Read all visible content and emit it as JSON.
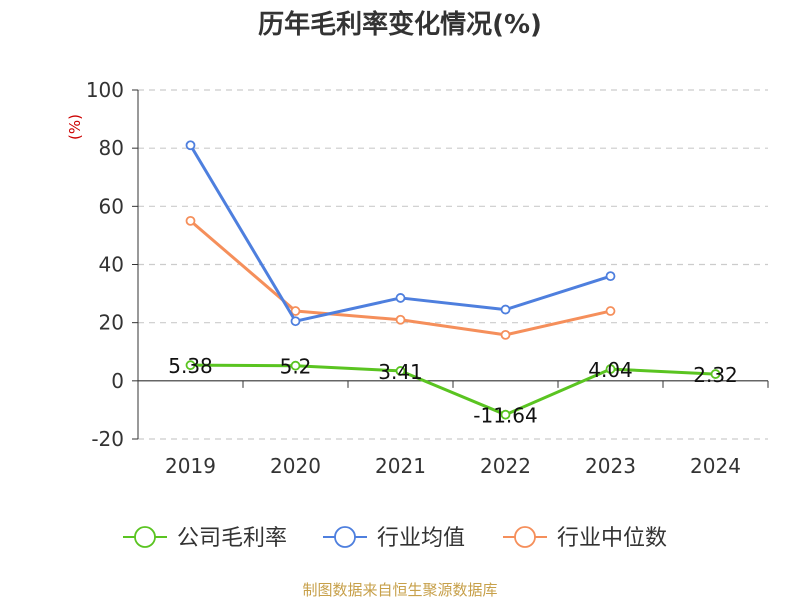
{
  "chart_data": {
    "type": "line",
    "title": "历年毛利率变化情况(%)",
    "ylabel": "(%)",
    "categories": [
      "2019",
      "2020",
      "2021",
      "2022",
      "2023",
      "2024"
    ],
    "ylim": [
      -20,
      100
    ],
    "yticks": [
      -20,
      0,
      20,
      40,
      60,
      80,
      100
    ],
    "grid": true,
    "legend": "bottom",
    "series": [
      {
        "name": "公司毛利率",
        "color": "#5ac421",
        "values": [
          5.38,
          5.2,
          3.41,
          -11.64,
          4.04,
          2.32
        ],
        "labels": [
          "5.38",
          "5.2",
          "3.41",
          "-11.64",
          "4.04",
          "2.32"
        ]
      },
      {
        "name": "行业均值",
        "color": "#4e7fde",
        "values": [
          81,
          20.5,
          28.5,
          24.5,
          36,
          null
        ]
      },
      {
        "name": "行业中位数",
        "color": "#f58f5b",
        "values": [
          55,
          24,
          21,
          15.8,
          24,
          null
        ]
      }
    ]
  },
  "colors": {
    "title": "#333333",
    "ylabel": "#cc0000",
    "axis": "#333333",
    "grid": "#cccccc",
    "source": "#c7a04a"
  },
  "source_note": "制图数据来自恒生聚源数据库"
}
